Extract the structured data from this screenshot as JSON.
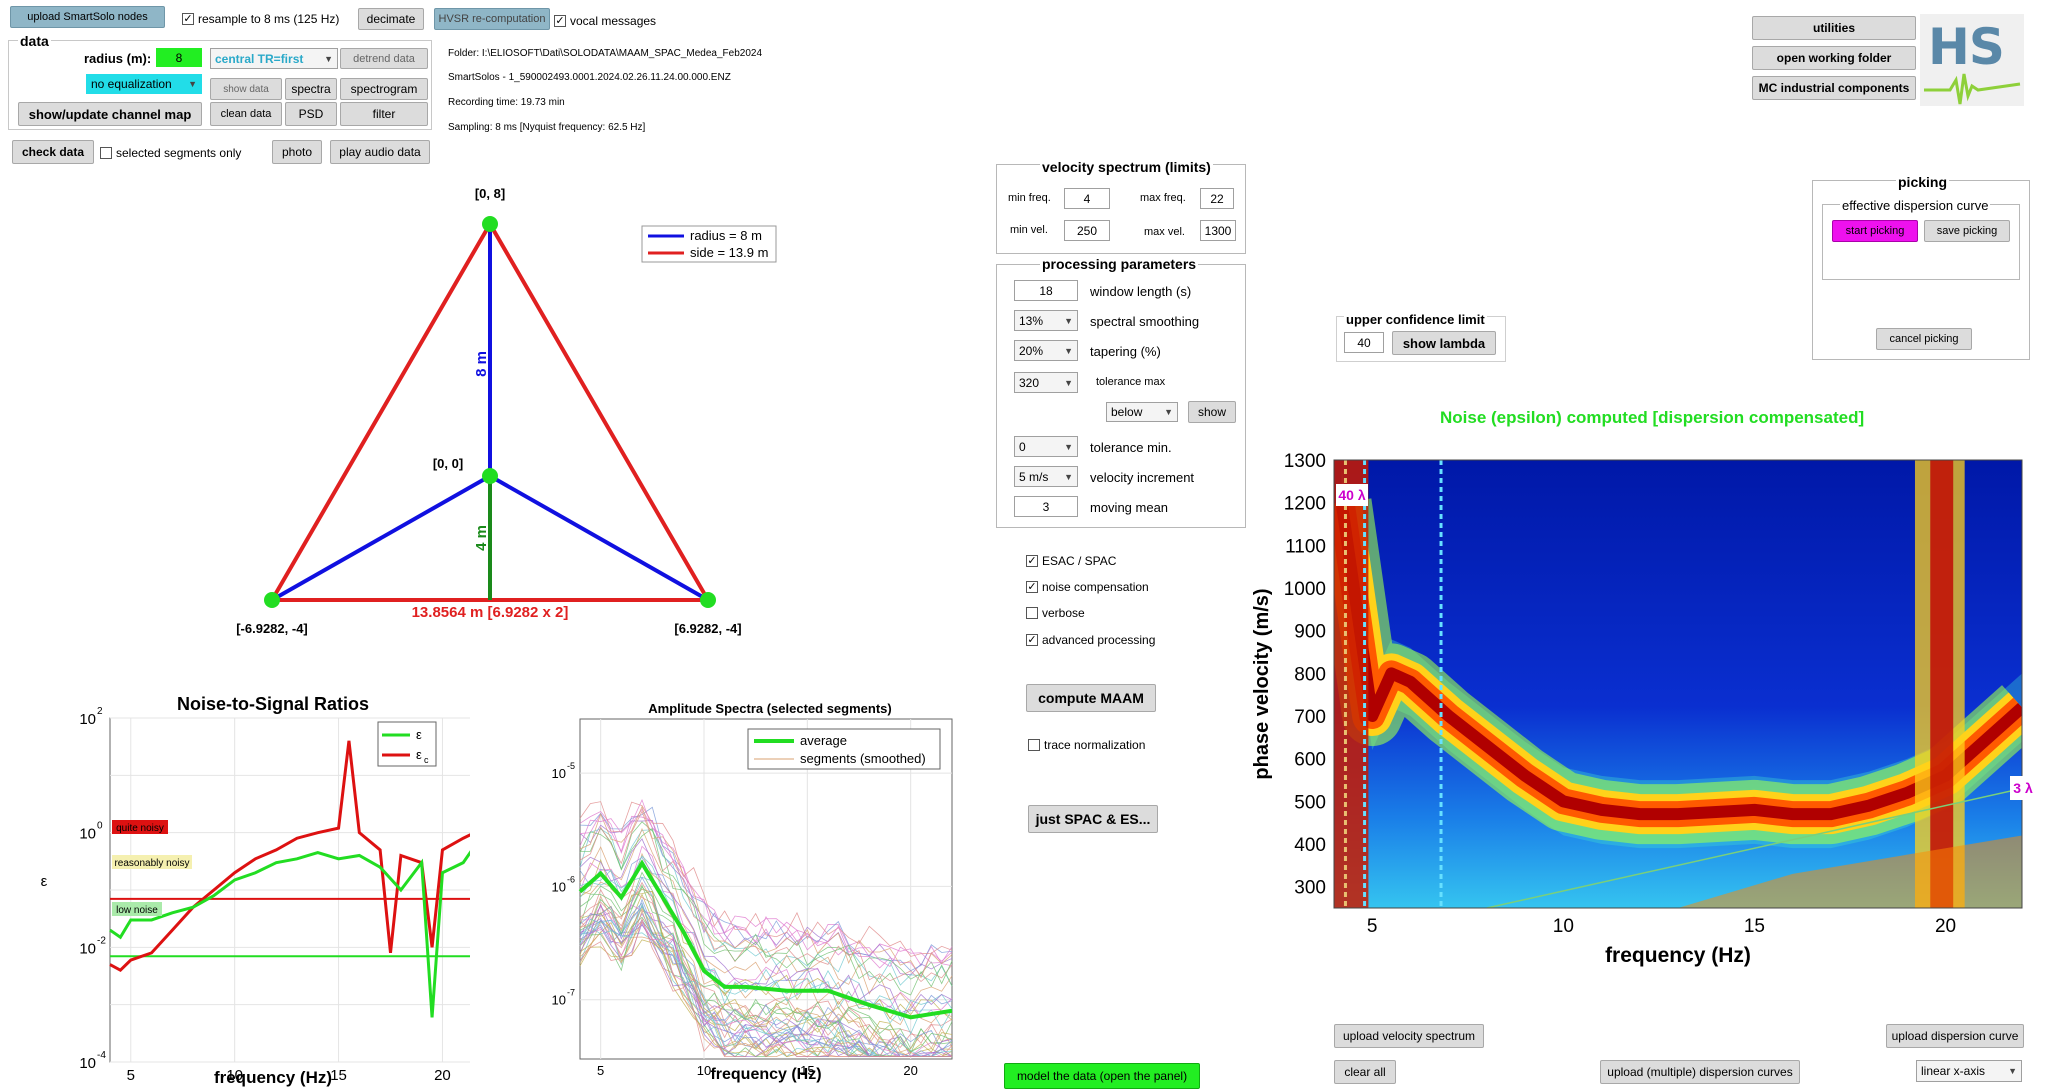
{
  "top": {
    "upload_nodes": "upload SmartSolo nodes",
    "resample_label": "resample to 8 ms (125 Hz)",
    "decimate": "decimate",
    "hvsr": "HVSR re-computation",
    "vocal_label": "vocal messages"
  },
  "data_panel": {
    "title": "data",
    "radius_label": "radius (m):",
    "radius_value": "8",
    "central_tr": "central TR=first",
    "detrend": "detrend data",
    "equalization": "no equalization",
    "show_data": "show data",
    "spectra": "spectra",
    "spectrogram": "spectrogram",
    "show_map": "show/update channel map",
    "clean_data": "clean data",
    "psd": "PSD",
    "filter": "filter"
  },
  "check_data": "check data",
  "selected_segments": "selected segments only",
  "photo": "photo",
  "play_audio": "play audio data",
  "info": {
    "folder": "Folder: I:\\ELIOSOFT\\Dati\\SOLODATA\\MAAM_SPAC_Medea_Feb2024",
    "file": "SmartSolos - 1_590002493.0001.2024.02.26.11.24.00.000.ENZ",
    "recording": "Recording time: 19.73 min",
    "sampling": "Sampling: 8 ms  [Nyquist frequency: 62.5 Hz]"
  },
  "geometry": {
    "top_label": "[0, 8]",
    "center_label": "[0, 0]",
    "left_label": "[-6.9282, -4]",
    "right_label": "[6.9282, -4]",
    "radius_vert": "8 m",
    "small_vert": "4 m",
    "base_label": "13.8564 m [6.9282 x 2]",
    "legend_radius": "radius = 8 m",
    "legend_side": "side = 13.9 m",
    "blue": "#1010e0",
    "red": "#e02020",
    "green": "#1a8a1a",
    "node": "#22dd22"
  },
  "velocity_spectrum": {
    "title": "velocity spectrum (limits)",
    "min_freq_label": "min freq.",
    "min_freq": "4",
    "max_freq_label": "max freq.",
    "max_freq": "22",
    "min_vel_label": "min vel.",
    "min_vel": "250",
    "max_vel_label": "max vel.",
    "max_vel": "1300"
  },
  "processing": {
    "title": "processing parameters",
    "window_length": "18",
    "window_length_label": "window length (s)",
    "smoothing": "13%",
    "smoothing_label": "spectral smoothing",
    "tapering": "20%",
    "tapering_label": "tapering (%)",
    "tol_max": "320",
    "tol_max_label": "tolerance max",
    "below": "below",
    "show": "show",
    "tol_min": "0",
    "tol_min_label": "tolerance min.",
    "vel_inc": "5 m/s",
    "vel_inc_label": "velocity increment",
    "moving_mean": "3",
    "moving_mean_label": "moving mean"
  },
  "options": {
    "esac": "ESAC / SPAC",
    "noise_comp": "noise compensation",
    "verbose": "verbose",
    "advanced": "advanced processing",
    "compute": "compute MAAM",
    "trace_norm": "trace normalization",
    "just_spac": "just SPAC & ES...",
    "model": "model the data (open the panel)"
  },
  "right_top": {
    "utilities": "utilities",
    "open_folder": "open working folder",
    "mc": "MC industrial components",
    "logo": "HS"
  },
  "upper_conf": {
    "title": "upper confidence limit",
    "value": "40",
    "show_lambda": "show lambda"
  },
  "picking": {
    "title": "picking",
    "subtitle": "effective dispersion curve",
    "start": "start picking",
    "save": "save picking",
    "cancel": "cancel picking"
  },
  "dispersion": {
    "title": "Noise (epsilon) computed [dispersion compensated]",
    "ylabel": "phase velocity (m/s)",
    "xlabel": "frequency (Hz)",
    "lambda40": "40 λ",
    "lambda3": "3 λ",
    "yticks": [
      "1300",
      "1200",
      "1100",
      "1000",
      "900",
      "800",
      "700",
      "600",
      "500",
      "400",
      "300"
    ],
    "xticks": [
      "5",
      "10",
      "15",
      "20"
    ],
    "upload_vs": "upload velocity spectrum",
    "upload_dc": "upload dispersion curve",
    "clear_all": "clear all",
    "upload_multi": "upload (multiple) dispersion curves",
    "xaxis": "linear x-axis"
  },
  "nsr": {
    "title": "Noise-to-Signal Ratios",
    "xlabel": "frequency (Hz)",
    "ylabel": "ε",
    "legend_eps": "ε",
    "legend_epsc": "ε",
    "legend_epsc_sub": "c",
    "quite": "quite noisy",
    "reasonably": "reasonably noisy",
    "low": "low noise",
    "xticks": [
      "5",
      "10",
      "15",
      "20"
    ],
    "yticks": [
      "10",
      "10",
      "10",
      "10"
    ],
    "yexp": [
      "2",
      "0",
      "-2",
      "-4"
    ]
  },
  "amp": {
    "title": "Amplitude Spectra (selected segments)",
    "xlabel": "frequency (Hz)",
    "legend_avg": "average",
    "legend_seg": "segments (smoothed)",
    "xticks": [
      "5",
      "10",
      "15",
      "20"
    ],
    "yticks": [
      "10",
      "10",
      "10"
    ],
    "yexp": [
      "-5",
      "-6",
      "-7"
    ]
  },
  "chart_data": [
    {
      "type": "line",
      "title": "Noise-to-Signal Ratios",
      "xlabel": "frequency (Hz)",
      "ylabel": "ε",
      "xlim": [
        4,
        22
      ],
      "ylim": [
        0.0001,
        100
      ],
      "yscale": "log",
      "grid": true,
      "legend": "top-right",
      "series": [
        {
          "name": "ε",
          "color": "#22dd22",
          "x": [
            4,
            4.5,
            5,
            6,
            7,
            8,
            9,
            10,
            11,
            12,
            13,
            14,
            15,
            16,
            17,
            18,
            19,
            19.5,
            20,
            21,
            22
          ],
          "y": [
            0.02,
            0.015,
            0.03,
            0.03,
            0.04,
            0.05,
            0.08,
            0.15,
            0.2,
            0.3,
            0.35,
            0.45,
            0.35,
            0.4,
            0.25,
            0.1,
            0.3,
            0.0006,
            0.2,
            0.3,
            1
          ]
        },
        {
          "name": "εc",
          "color": "#dd1111",
          "x": [
            4,
            4.5,
            5,
            6,
            7,
            8,
            9,
            10,
            11,
            12,
            13,
            14,
            15,
            15.5,
            16,
            17,
            17.5,
            18,
            19,
            19.5,
            20,
            21,
            22
          ],
          "y": [
            0.005,
            0.004,
            0.006,
            0.008,
            0.02,
            0.05,
            0.1,
            0.2,
            0.35,
            0.5,
            0.8,
            1,
            1.2,
            40,
            1,
            0.5,
            0.008,
            0.4,
            0.3,
            0.01,
            0.5,
            0.8,
            1.2
          ]
        }
      ],
      "thresholds": [
        {
          "label": "quite noisy",
          "value": 0.07,
          "color": "#dd1111"
        },
        {
          "label": "low noise",
          "value": 0.007,
          "color": "#22dd22"
        }
      ]
    },
    {
      "type": "line",
      "title": "Amplitude Spectra (selected segments)",
      "xlabel": "frequency (Hz)",
      "xlim": [
        4,
        22
      ],
      "ylim": [
        3e-08,
        3e-05
      ],
      "yscale": "log",
      "grid": true,
      "legend": "top-right",
      "series": [
        {
          "name": "average",
          "color": "#22dd22",
          "x": [
            4,
            5,
            6,
            7,
            8,
            9,
            10,
            11,
            12,
            14,
            16,
            18,
            20,
            22
          ],
          "y": [
            9e-07,
            1.3e-06,
            8e-07,
            1.6e-06,
            8e-07,
            4e-07,
            1.8e-07,
            1.3e-07,
            1.3e-07,
            1.2e-07,
            1.2e-07,
            9e-08,
            7e-08,
            8e-08
          ]
        }
      ]
    },
    {
      "type": "heatmap",
      "title": "Noise (epsilon) computed [dispersion compensated]",
      "xlabel": "frequency (Hz)",
      "ylabel": "phase velocity (m/s)",
      "xlim": [
        4,
        22
      ],
      "ylim": [
        250,
        1300
      ],
      "ridge": {
        "x": [
          4.2,
          5,
          5.5,
          6,
          7,
          8,
          9,
          10,
          11,
          12,
          13,
          14,
          15,
          16,
          17,
          18,
          19,
          20,
          21,
          22
        ],
        "y": [
          1200,
          700,
          800,
          780,
          700,
          630,
          560,
          500,
          480,
          470,
          470,
          475,
          480,
          470,
          470,
          490,
          520,
          560,
          640,
          720
        ]
      }
    }
  ]
}
